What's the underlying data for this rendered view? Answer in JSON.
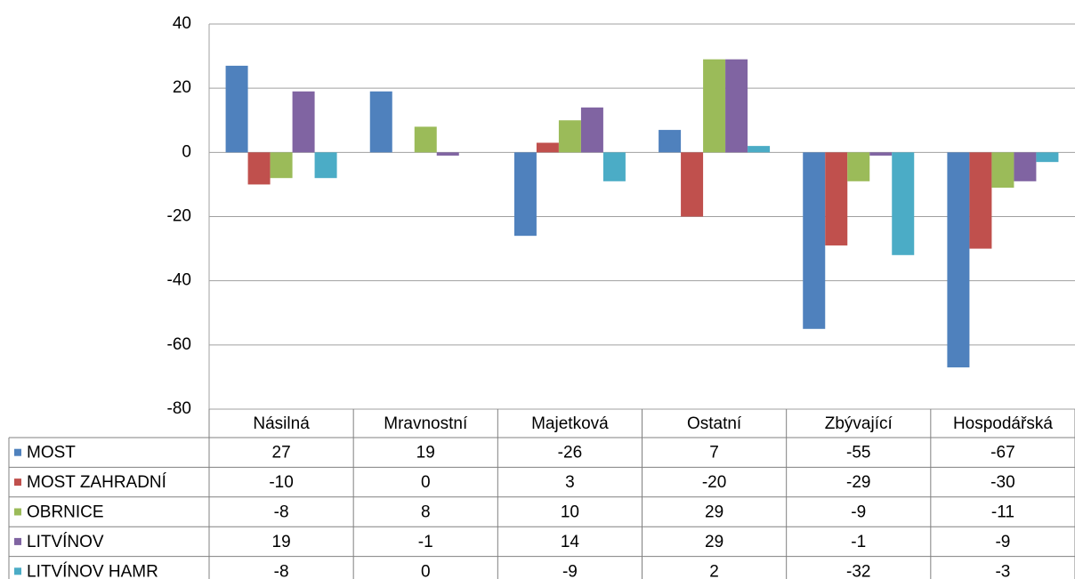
{
  "chart_data": {
    "type": "bar",
    "categories": [
      "Násilná",
      "Mravnostní",
      "Majetková",
      "Ostatní",
      "Zbývající",
      "Hospodářská"
    ],
    "series": [
      {
        "name": "MOST",
        "color": "#4f81bd",
        "values": [
          27,
          19,
          -26,
          7,
          -55,
          -67
        ]
      },
      {
        "name": "MOST ZAHRADNÍ",
        "color": "#c0504d",
        "values": [
          -10,
          0,
          3,
          -20,
          -29,
          -30
        ]
      },
      {
        "name": "OBRNICE",
        "color": "#9bbb59",
        "values": [
          -8,
          8,
          10,
          29,
          -9,
          -11
        ]
      },
      {
        "name": "LITVÍNOV",
        "color": "#8064a2",
        "values": [
          19,
          -1,
          14,
          29,
          -1,
          -9
        ]
      },
      {
        "name": "LITVÍNOV HAMR",
        "color": "#4bacc6",
        "values": [
          -8,
          0,
          -9,
          2,
          -32,
          -3
        ]
      }
    ],
    "ylim": [
      -80,
      40
    ],
    "yticks": [
      -80,
      -60,
      -40,
      -20,
      0,
      20,
      40
    ],
    "grid": true
  }
}
